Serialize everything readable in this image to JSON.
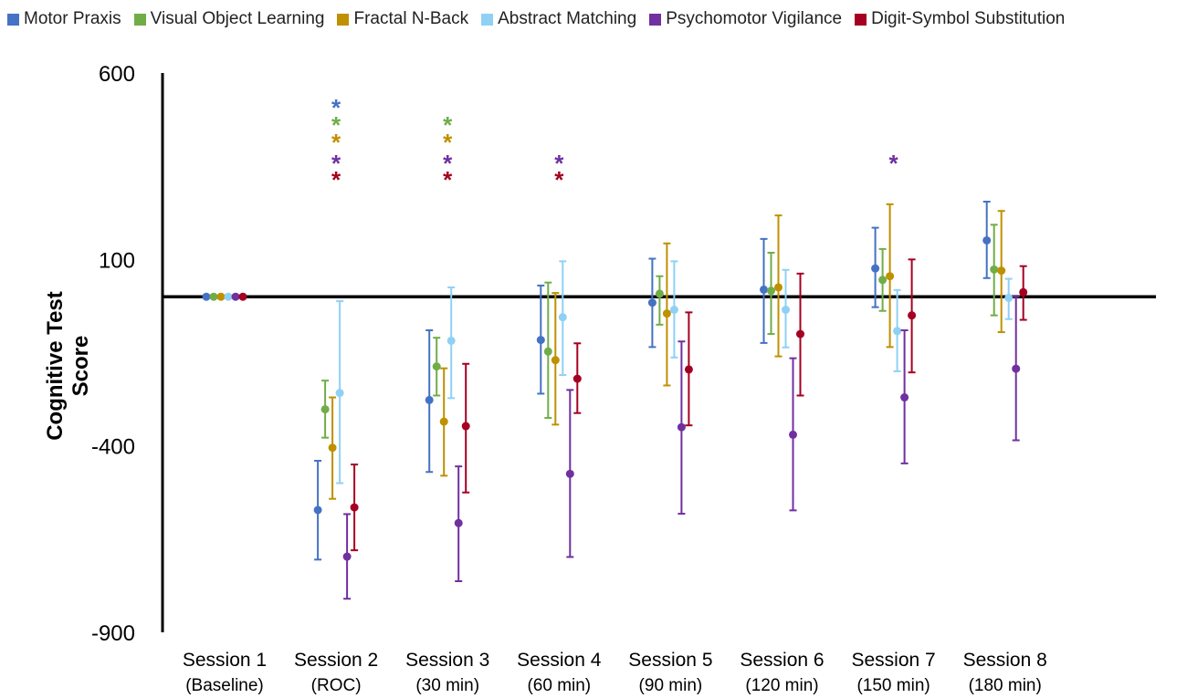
{
  "chart_data": {
    "type": "scatter",
    "subtype": "error-bar",
    "title": "",
    "xlabel": "",
    "ylabel": "Cognitive Test Score",
    "ylim": [
      -900,
      600
    ],
    "yticks": [
      600,
      100,
      -400,
      -900
    ],
    "ytick_labels": [
      "600",
      "100",
      "-400",
      "-900"
    ],
    "reference_line": 0,
    "legend_position": "top",
    "categories": [
      {
        "line1": "Session 1",
        "line2": "(Baseline)"
      },
      {
        "line1": "Session 2",
        "line2": "(ROC)"
      },
      {
        "line1": "Session 3",
        "line2": "(30 min)"
      },
      {
        "line1": "Session 4",
        "line2": "(60 min)"
      },
      {
        "line1": "Session 5",
        "line2": "(90 min)"
      },
      {
        "line1": "Session 6",
        "line2": "(120 min)"
      },
      {
        "line1": "Session 7",
        "line2": "(150 min)"
      },
      {
        "line1": "Session 8",
        "line2": "(180 min)"
      }
    ],
    "series": [
      {
        "name": "Motor Praxis",
        "color": "#4472C4",
        "values": [
          0,
          -572,
          -277,
          -116,
          -16,
          19,
          76,
          151
        ],
        "lower": [
          0,
          -705,
          -470,
          -260,
          -135,
          -124,
          -28,
          50
        ],
        "upper": [
          0,
          -440,
          -90,
          30,
          102,
          155,
          185,
          255
        ]
      },
      {
        "name": "Visual Object Learning",
        "color": "#70AD47",
        "values": [
          0,
          -302,
          -187,
          -147,
          8,
          16,
          45,
          73
        ],
        "lower": [
          0,
          -378,
          -265,
          -325,
          -75,
          -100,
          -38,
          -50
        ],
        "upper": [
          0,
          -225,
          -110,
          38,
          55,
          118,
          128,
          193
        ]
      },
      {
        "name": "Fractal N-Back",
        "color": "#BF9000",
        "values": [
          0,
          -405,
          -335,
          -170,
          -45,
          25,
          55,
          70
        ],
        "lower": [
          0,
          -542,
          -480,
          -343,
          -238,
          -160,
          -135,
          -95
        ],
        "upper": [
          0,
          -270,
          -192,
          10,
          143,
          218,
          248,
          230
        ]
      },
      {
        "name": "Abstract Matching",
        "color": "#8FD1F5",
        "values": [
          0,
          -258,
          -118,
          -55,
          -35,
          -35,
          -92,
          -3
        ],
        "lower": [
          0,
          -500,
          -272,
          -210,
          -163,
          -136,
          -200,
          -60
        ],
        "upper": [
          0,
          -12,
          25,
          95,
          95,
          72,
          18,
          48
        ]
      },
      {
        "name": "Psychomotor Vigilance",
        "color": "#7030A0",
        "values": [
          0,
          -697,
          -607,
          -475,
          -350,
          -370,
          -270,
          -193
        ],
        "lower": [
          0,
          -810,
          -763,
          -698,
          -582,
          -573,
          -447,
          -385
        ],
        "upper": [
          0,
          -583,
          -455,
          -250,
          -120,
          -165,
          -90,
          0
        ]
      },
      {
        "name": "Digit-Symbol Substitution",
        "color": "#A50021",
        "values": [
          0,
          -565,
          -347,
          -220,
          -195,
          -100,
          -50,
          12
        ],
        "lower": [
          0,
          -680,
          -525,
          -312,
          -345,
          -265,
          -203,
          -62
        ],
        "upper": [
          0,
          -450,
          -180,
          -125,
          -42,
          62,
          100,
          82
        ]
      }
    ],
    "annotations": [
      {
        "session": 1,
        "series": 0,
        "text": "*"
      },
      {
        "session": 1,
        "series": 1,
        "text": "*"
      },
      {
        "session": 1,
        "series": 2,
        "text": "*"
      },
      {
        "session": 1,
        "series": 4,
        "text": "*"
      },
      {
        "session": 1,
        "series": 5,
        "text": "*"
      },
      {
        "session": 2,
        "series": 1,
        "text": "*"
      },
      {
        "session": 2,
        "series": 2,
        "text": "*"
      },
      {
        "session": 2,
        "series": 4,
        "text": "*"
      },
      {
        "session": 2,
        "series": 5,
        "text": "*"
      },
      {
        "session": 3,
        "series": 4,
        "text": "*"
      },
      {
        "session": 3,
        "series": 5,
        "text": "*"
      },
      {
        "session": 6,
        "series": 4,
        "text": "*"
      }
    ]
  }
}
